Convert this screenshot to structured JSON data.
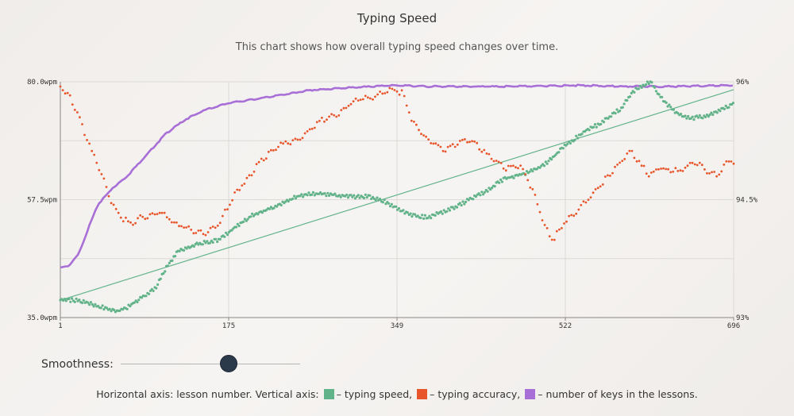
{
  "header": {
    "title": "Typing Speed",
    "subtitle": "This chart shows how overall typing speed changes over time."
  },
  "controls": {
    "smoothness_label": "Smoothness:",
    "smoothness_value": 0.6
  },
  "legend": {
    "prefix": "Horizontal axis: lesson number. Vertical axis:",
    "items": [
      {
        "color": "#63b38a",
        "text": "– typing speed,"
      },
      {
        "color": "#e8552b",
        "text": "– typing accuracy,"
      },
      {
        "color": "#a86fd6",
        "text": "– number of keys in the lessons."
      }
    ]
  },
  "chart_data": {
    "type": "line",
    "x_ticks": [
      "1",
      "175",
      "349",
      "522",
      "696"
    ],
    "xlim": [
      1,
      696
    ],
    "y_left_ticks": [
      "80.0wpm",
      "57.5wpm",
      "35.0wpm"
    ],
    "y_left_range": [
      35,
      80
    ],
    "y_right_ticks": [
      "96%",
      "94.5%",
      "93%"
    ],
    "y_right_range": [
      93,
      96
    ],
    "grid": true,
    "colors": {
      "speed": "#63b38a",
      "accuracy": "#e8552b",
      "keys": "#a86fd6"
    },
    "series": [
      {
        "key": "speed",
        "axis": "left",
        "x": [
          1,
          20,
          40,
          57,
          69,
          85,
          100,
          110,
          122,
          135,
          148,
          163,
          175,
          200,
          225,
          245,
          260,
          285,
          300,
          318,
          335,
          350,
          363,
          380,
          405,
          420,
          440,
          460,
          480,
          500,
          520,
          540,
          560,
          580,
          595,
          610,
          620,
          635,
          650,
          665,
          680,
          696
        ],
        "values": [
          38.3,
          38.3,
          37.2,
          36.2,
          36.8,
          38.8,
          40.8,
          44.4,
          47.6,
          48.5,
          49.3,
          49.7,
          51.3,
          54.6,
          56.4,
          58.1,
          58.7,
          58.4,
          58.1,
          58.1,
          57.2,
          55.8,
          54.6,
          54.1,
          55.8,
          57.2,
          59.1,
          61.5,
          62.5,
          64.1,
          67.4,
          70.3,
          72.2,
          75.0,
          78.7,
          80.0,
          77.2,
          74.3,
          73.0,
          73.4,
          74.3,
          76.0
        ]
      },
      {
        "key": "accuracy",
        "axis": "right",
        "x": [
          1,
          10,
          20,
          30,
          45,
          55,
          65,
          75,
          85,
          95,
          105,
          120,
          140,
          150,
          165,
          175,
          185,
          195,
          205,
          215,
          230,
          245,
          260,
          270,
          285,
          300,
          310,
          325,
          335,
          345,
          355,
          365,
          380,
          395,
          408,
          420,
          430,
          445,
          460,
          472,
          480,
          495,
          500,
          510,
          520,
          535,
          550,
          565,
          580,
          590,
          600,
          610,
          620,
          630,
          640,
          650,
          660,
          670,
          680,
          690,
          696
        ],
        "values": [
          95.94,
          95.84,
          95.55,
          95.22,
          94.78,
          94.44,
          94.26,
          94.19,
          94.28,
          94.29,
          94.34,
          94.19,
          94.1,
          94.06,
          94.21,
          94.44,
          94.64,
          94.76,
          94.96,
          95.07,
          95.21,
          95.25,
          95.41,
          95.51,
          95.57,
          95.71,
          95.78,
          95.81,
          95.88,
          95.9,
          95.85,
          95.48,
          95.27,
          95.13,
          95.18,
          95.27,
          95.21,
          95.04,
          94.9,
          94.94,
          94.86,
          94.42,
          94.16,
          94.0,
          94.19,
          94.36,
          94.57,
          94.78,
          94.98,
          95.12,
          94.94,
          94.81,
          94.9,
          94.88,
          94.86,
          94.94,
          94.96,
          94.84,
          94.81,
          95.0,
          94.98
        ]
      },
      {
        "key": "keys",
        "axis": "none",
        "x": [
          1,
          10,
          20,
          30,
          40,
          55,
          70,
          90,
          110,
          130,
          150,
          175,
          200,
          230,
          260,
          300,
          349,
          380,
          420,
          460,
          500,
          540,
          580,
          620,
          660,
          696
        ],
        "values": [
          0.21,
          0.22,
          0.27,
          0.38,
          0.48,
          0.55,
          0.6,
          0.69,
          0.78,
          0.84,
          0.88,
          0.91,
          0.925,
          0.945,
          0.965,
          0.975,
          0.985,
          0.98,
          0.98,
          0.98,
          0.982,
          0.985,
          0.98,
          0.98,
          0.982,
          0.985
        ]
      }
    ],
    "trend_line": {
      "axis": "left",
      "x": [
        1,
        696
      ],
      "values": [
        38.3,
        78.5
      ]
    }
  }
}
